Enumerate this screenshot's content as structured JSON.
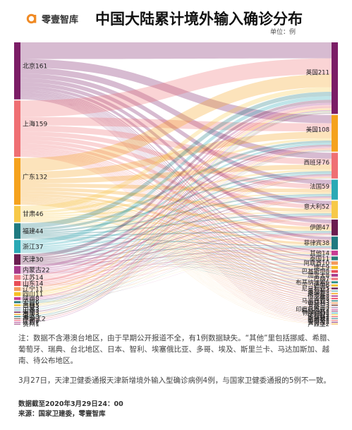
{
  "header": {
    "brand": "零壹智库",
    "title": "中国大陆累计境外输入确诊分布",
    "unit_label": "单位：例"
  },
  "colors": {
    "accent": "#f08a24",
    "link_opacity": "0.30"
  },
  "diagram": {
    "sources": [
      {
        "name": "北京",
        "value": 161,
        "label": "北京161",
        "color": "#7b1d66"
      },
      {
        "name": "上海",
        "value": 159,
        "label": "上海159",
        "color": "#ef6f73"
      },
      {
        "name": "广东",
        "value": 132,
        "label": "广东132",
        "color": "#f5a21d"
      },
      {
        "name": "甘肃",
        "value": 46,
        "label": "甘肃46",
        "color": "#f7c948"
      },
      {
        "name": "福建",
        "value": 44,
        "label": "福建44",
        "color": "#1f7a80"
      },
      {
        "name": "浙江",
        "value": 37,
        "label": "浙江37",
        "color": "#2aa9b5"
      },
      {
        "name": "天津",
        "value": 30,
        "label": "天津30",
        "color": "#6b1d4f"
      },
      {
        "name": "内蒙古",
        "value": 22,
        "label": "内蒙古22",
        "color": "#a83a8b"
      },
      {
        "name": "江苏",
        "value": 14,
        "label": "江苏14",
        "color": "#ee7a82"
      },
      {
        "name": "山东",
        "value": 14,
        "label": "山东14",
        "color": "#e84d57"
      },
      {
        "name": "辽宁",
        "value": 11,
        "label": "辽宁11",
        "color": "#f59a5b"
      },
      {
        "name": "四川",
        "value": 11,
        "label": "四川11",
        "color": "#f6c024"
      },
      {
        "name": "陕西",
        "value": 8,
        "label": "陕西8",
        "color": "#c83c94"
      },
      {
        "name": "云南",
        "value": 6,
        "label": "云南6",
        "color": "#2a7d7b"
      },
      {
        "name": "吉林",
        "value": 5,
        "label": "吉林5",
        "color": "#f3c32f"
      },
      {
        "name": "宁夏",
        "value": 3,
        "label": "宁夏3",
        "color": "#a6a3c2"
      },
      {
        "name": "山西",
        "value": 3,
        "label": "山西3",
        "color": "#8fc7cf"
      },
      {
        "name": "河南",
        "value": 3,
        "label": "河南3",
        "color": "#6b2058"
      },
      {
        "name": "重庆",
        "value": 3,
        "label": "重庆3",
        "color": "#f6b33a"
      },
      {
        "name": "河北",
        "value": 3,
        "label": "河北3",
        "color": "#2c8f8a"
      },
      {
        "name": "黑龙江",
        "value": 2,
        "label": "黑龙江2",
        "color": "#7f3a2a"
      },
      {
        "name": "广西",
        "value": 2,
        "label": "广西2",
        "color": "#ef4f6a"
      },
      {
        "name": "江西",
        "value": 2,
        "label": "江西2",
        "color": "#b04a9a"
      },
      {
        "name": "贵州",
        "value": 1,
        "label": "贵州1",
        "color": "#8e2a6e"
      }
    ],
    "targets": [
      {
        "name": "英国",
        "value": 211,
        "label": "英国211",
        "color": "#7b1d66"
      },
      {
        "name": "美国",
        "value": 108,
        "label": "美国108",
        "color": "#f5a21d"
      },
      {
        "name": "西班牙",
        "value": 76,
        "label": "西班牙76",
        "color": "#ef6f73"
      },
      {
        "name": "法国",
        "value": 59,
        "label": "法国59",
        "color": "#2aa9b5"
      },
      {
        "name": "意大利",
        "value": 52,
        "label": "意大利52",
        "color": "#f7c948"
      },
      {
        "name": "伊朗",
        "value": 47,
        "label": "伊朗47",
        "color": "#6b1d4f"
      },
      {
        "name": "菲律宾",
        "value": 38,
        "label": "菲律宾38",
        "color": "#1f7a80"
      },
      {
        "name": "其他",
        "value": 14,
        "label": "其他14",
        "color": "#c83c94"
      },
      {
        "name": "泰国",
        "value": 11,
        "label": "泰国11",
        "color": "#2a7d7b"
      },
      {
        "name": "阿联酋",
        "value": 10,
        "label": "阿联酋10",
        "color": "#f59a5b"
      },
      {
        "name": "瑞士",
        "value": 9,
        "label": "瑞士9",
        "color": "#f6c024"
      },
      {
        "name": "巴基斯坦",
        "value": 8,
        "label": "巴基斯坦8",
        "color": "#e84d57"
      },
      {
        "name": "加拿大",
        "value": 8,
        "label": "加拿大8",
        "color": "#a83a8b"
      },
      {
        "name": "巴西",
        "value": 7,
        "label": "巴西7",
        "color": "#ee7a82"
      },
      {
        "name": "布基纳法索",
        "value": 6,
        "label": "布基纳法索6",
        "color": "#2c8f8a"
      },
      {
        "name": "德国",
        "value": 6,
        "label": "德国6",
        "color": "#f3c32f"
      },
      {
        "name": "尼日利亚",
        "value": 5,
        "label": "尼日利亚5",
        "color": "#6b2058"
      },
      {
        "name": "奥地利",
        "value": 4,
        "label": "奥地利4",
        "color": "#8fc7cf"
      },
      {
        "name": "柬埔寨",
        "value": 4,
        "label": "柬埔寨4",
        "color": "#f6b33a"
      },
      {
        "name": "俄罗斯",
        "value": 4,
        "label": "俄罗斯4",
        "color": "#b04a9a"
      },
      {
        "name": "沙特",
        "value": 4,
        "label": "沙特4",
        "color": "#ef4f6a"
      },
      {
        "name": "马来西亚",
        "value": 3,
        "label": "马来西亚3",
        "color": "#2a7d7b"
      },
      {
        "name": "匈牙利",
        "value": 3,
        "label": "匈牙利3",
        "color": "#f59a5b"
      },
      {
        "name": "爱尔兰",
        "value": 3,
        "label": "爱尔兰3",
        "color": "#7f3a2a"
      },
      {
        "name": "荷兰",
        "value": 3,
        "label": "荷兰3",
        "color": "#a6a3c2"
      },
      {
        "name": "印度尼西亚",
        "value": 2,
        "label": "印度尼西亚2",
        "color": "#c83c94"
      },
      {
        "name": "科特迪瓦",
        "value": 2,
        "label": "科特迪瓦2",
        "color": "#8e2a6e"
      },
      {
        "name": "刚果(金)",
        "value": 2,
        "label": "刚果(金)2",
        "color": "#2aa9b5"
      },
      {
        "name": "比利时",
        "value": 2,
        "label": "比利时2",
        "color": "#f6c024"
      },
      {
        "name": "土耳其",
        "value": 2,
        "label": "土耳其2",
        "color": "#e84d57"
      },
      {
        "name": "新加坡",
        "value": 2,
        "label": "新加坡2",
        "color": "#1f7a80"
      },
      {
        "name": "墨西哥",
        "value": 2,
        "label": "墨西哥2",
        "color": "#ef6f73"
      },
      {
        "name": "安哥拉",
        "value": 2,
        "label": "安哥拉2",
        "color": "#7b1d66"
      },
      {
        "name": "卢森堡",
        "value": 2,
        "label": "卢森堡2",
        "color": "#f5a21d"
      }
    ]
  },
  "notes": {
    "note1": "注：数据不含港澳台地区，由于早期公开报道不全，有1例数据缺失。“其他”里包括挪威、希腊、葡萄牙、瑞典、台北地区、日本、智利、埃塞俄比亚、多哥、埃及、斯里兰卡、马达加斯加、越南、待公布地区。",
    "note2": "3月27日，天津卫健委通报天津新增境外输入型确诊病例4例，与国家卫健委通报的5例不一致。"
  },
  "footer": {
    "cutoff": "数据截至2020年3月29日24：00",
    "source": "来源：国家卫建委，零壹智库"
  }
}
